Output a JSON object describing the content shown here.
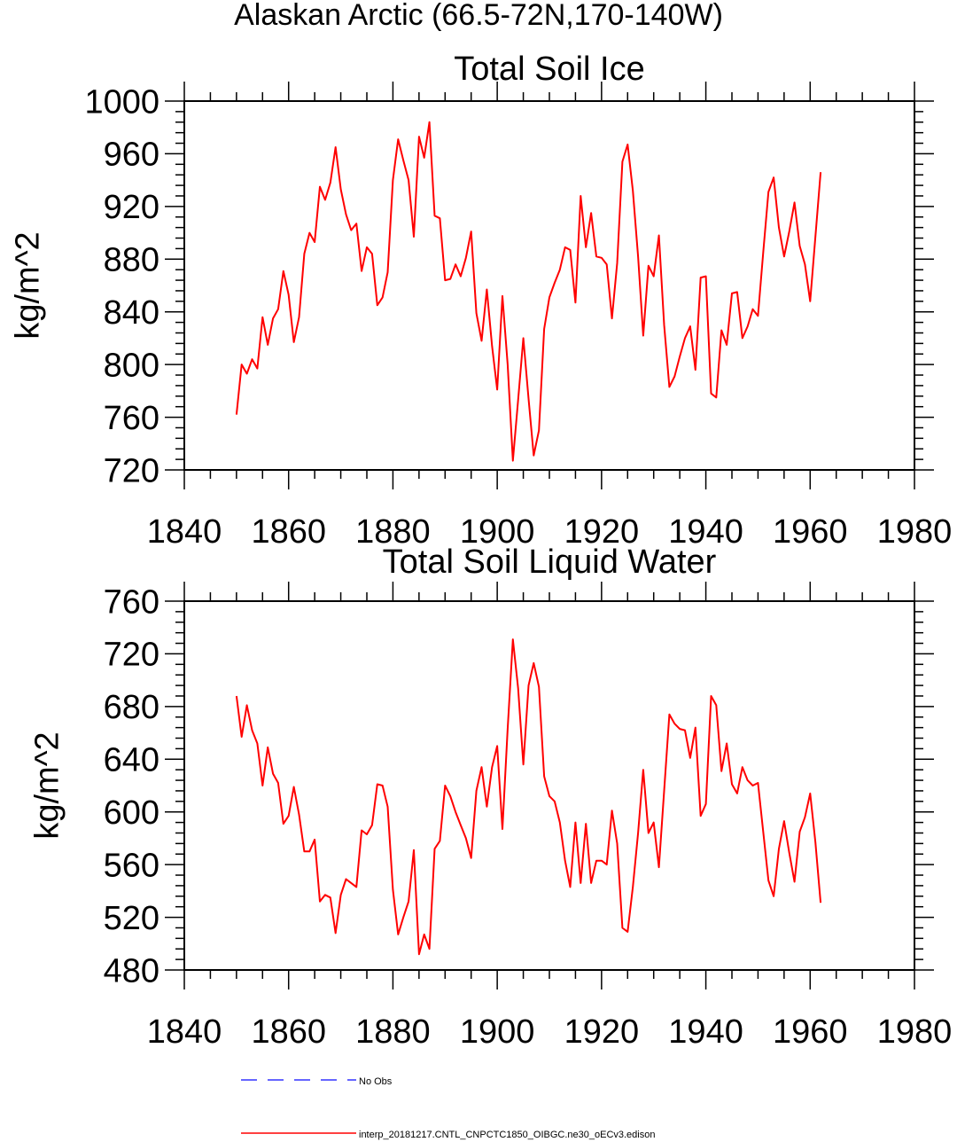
{
  "suptitle": "Alaskan Arctic (66.5-72N,170-140W)",
  "legend": {
    "placement": "bottom",
    "entries": [
      {
        "label": "No Obs",
        "color": "#3333ff",
        "dash": "dashed"
      },
      {
        "label": "interp_20181217.CNTL_CNPCTC1850_OIBGC.ne30_oECv3.edison",
        "color": "#ff0000",
        "dash": "solid"
      }
    ]
  },
  "chart_data": [
    {
      "type": "line",
      "title": "Total Soil Ice",
      "ylabel": "kg/m^2",
      "xlabel": "",
      "xlim": [
        1840,
        1980
      ],
      "ylim": [
        720,
        1000
      ],
      "xticks": [
        1840,
        1860,
        1880,
        1900,
        1920,
        1940,
        1960,
        1980
      ],
      "yticks": [
        720,
        760,
        800,
        840,
        880,
        920,
        960,
        1000
      ],
      "x": [
        1850,
        1851,
        1852,
        1853,
        1854,
        1855,
        1856,
        1857,
        1858,
        1859,
        1860,
        1861,
        1862,
        1863,
        1864,
        1865,
        1866,
        1867,
        1868,
        1869,
        1870,
        1871,
        1872,
        1873,
        1874,
        1875,
        1876,
        1877,
        1878,
        1879,
        1880,
        1881,
        1882,
        1883,
        1884,
        1885,
        1886,
        1887,
        1888,
        1889,
        1890,
        1891,
        1892,
        1893,
        1894,
        1895,
        1896,
        1897,
        1898,
        1899,
        1900,
        1901,
        1902,
        1903,
        1904,
        1905,
        1906,
        1907,
        1908,
        1909,
        1910,
        1911,
        1912,
        1913,
        1914,
        1915,
        1916,
        1917,
        1918,
        1919,
        1920,
        1921,
        1922,
        1923,
        1924,
        1925,
        1926,
        1927,
        1928,
        1929,
        1930,
        1931,
        1932,
        1933,
        1934,
        1935,
        1936,
        1937,
        1938,
        1939,
        1940,
        1941,
        1942,
        1943,
        1944,
        1945,
        1946,
        1947,
        1948,
        1949,
        1950,
        1951,
        1952,
        1953,
        1954,
        1955,
        1956,
        1957,
        1958,
        1959,
        1960,
        1961,
        1962
      ],
      "series": [
        {
          "name": "",
          "color": "#ff0000",
          "values": [
            762,
            800,
            793,
            804,
            797,
            836,
            815,
            835,
            842,
            871,
            853,
            817,
            836,
            884,
            900,
            893,
            935,
            925,
            938,
            965,
            933,
            914,
            902,
            907,
            871,
            889,
            884,
            845,
            851,
            870,
            940,
            971,
            955,
            940,
            897,
            973,
            957,
            984,
            913,
            911,
            864,
            865,
            876,
            867,
            881,
            901,
            839,
            818,
            857,
            814,
            781,
            852,
            800,
            727,
            773,
            820,
            774,
            731,
            750,
            827,
            851,
            862,
            872,
            889,
            887,
            847,
            928,
            889,
            915,
            882,
            881,
            876,
            835,
            877,
            954,
            967,
            932,
            882,
            822,
            875,
            867,
            898,
            830,
            783,
            791,
            806,
            820,
            829,
            796,
            866,
            867,
            778,
            775,
            826,
            815,
            854,
            855,
            820,
            829,
            842,
            837,
            885,
            931,
            942,
            904,
            882,
            901,
            923,
            890,
            876,
            848,
            897,
            946
          ]
        }
      ]
    },
    {
      "type": "line",
      "title": "Total Soil Liquid Water",
      "ylabel": "kg/m^2",
      "xlabel": "",
      "xlim": [
        1840,
        1980
      ],
      "ylim": [
        480,
        760
      ],
      "xticks": [
        1840,
        1860,
        1880,
        1900,
        1920,
        1940,
        1960,
        1980
      ],
      "yticks": [
        480,
        520,
        560,
        600,
        640,
        680,
        720,
        760
      ],
      "x": [
        1850,
        1851,
        1852,
        1853,
        1854,
        1855,
        1856,
        1857,
        1858,
        1859,
        1860,
        1861,
        1862,
        1863,
        1864,
        1865,
        1866,
        1867,
        1868,
        1869,
        1870,
        1871,
        1872,
        1873,
        1874,
        1875,
        1876,
        1877,
        1878,
        1879,
        1880,
        1881,
        1882,
        1883,
        1884,
        1885,
        1886,
        1887,
        1888,
        1889,
        1890,
        1891,
        1892,
        1893,
        1894,
        1895,
        1896,
        1897,
        1898,
        1899,
        1900,
        1901,
        1902,
        1903,
        1904,
        1905,
        1906,
        1907,
        1908,
        1909,
        1910,
        1911,
        1912,
        1913,
        1914,
        1915,
        1916,
        1917,
        1918,
        1919,
        1920,
        1921,
        1922,
        1923,
        1924,
        1925,
        1926,
        1927,
        1928,
        1929,
        1930,
        1931,
        1932,
        1933,
        1934,
        1935,
        1936,
        1937,
        1938,
        1939,
        1940,
        1941,
        1942,
        1943,
        1944,
        1945,
        1946,
        1947,
        1948,
        1949,
        1950,
        1951,
        1952,
        1953,
        1954,
        1955,
        1956,
        1957,
        1958,
        1959,
        1960,
        1961,
        1962
      ],
      "series": [
        {
          "name": "",
          "color": "#ff0000",
          "values": [
            688,
            657,
            681,
            662,
            652,
            620,
            649,
            629,
            622,
            591,
            597,
            619,
            598,
            570,
            570,
            579,
            532,
            537,
            535,
            508,
            537,
            549,
            546,
            543,
            586,
            583,
            590,
            621,
            620,
            604,
            541,
            507,
            520,
            532,
            571,
            492,
            507,
            496,
            572,
            578,
            620,
            612,
            600,
            590,
            580,
            565,
            616,
            634,
            604,
            634,
            650,
            587,
            663,
            731,
            694,
            636,
            696,
            713,
            695,
            627,
            612,
            608,
            592,
            563,
            543,
            592,
            546,
            591,
            546,
            563,
            563,
            560,
            601,
            576,
            512,
            509,
            543,
            584,
            632,
            584,
            592,
            558,
            616,
            674,
            667,
            663,
            662,
            641,
            664,
            597,
            606,
            688,
            681,
            631,
            652,
            621,
            614,
            634,
            624,
            620,
            622,
            585,
            548,
            536,
            572,
            593,
            569,
            547,
            585,
            596,
            614,
            577,
            531
          ]
        }
      ]
    }
  ]
}
